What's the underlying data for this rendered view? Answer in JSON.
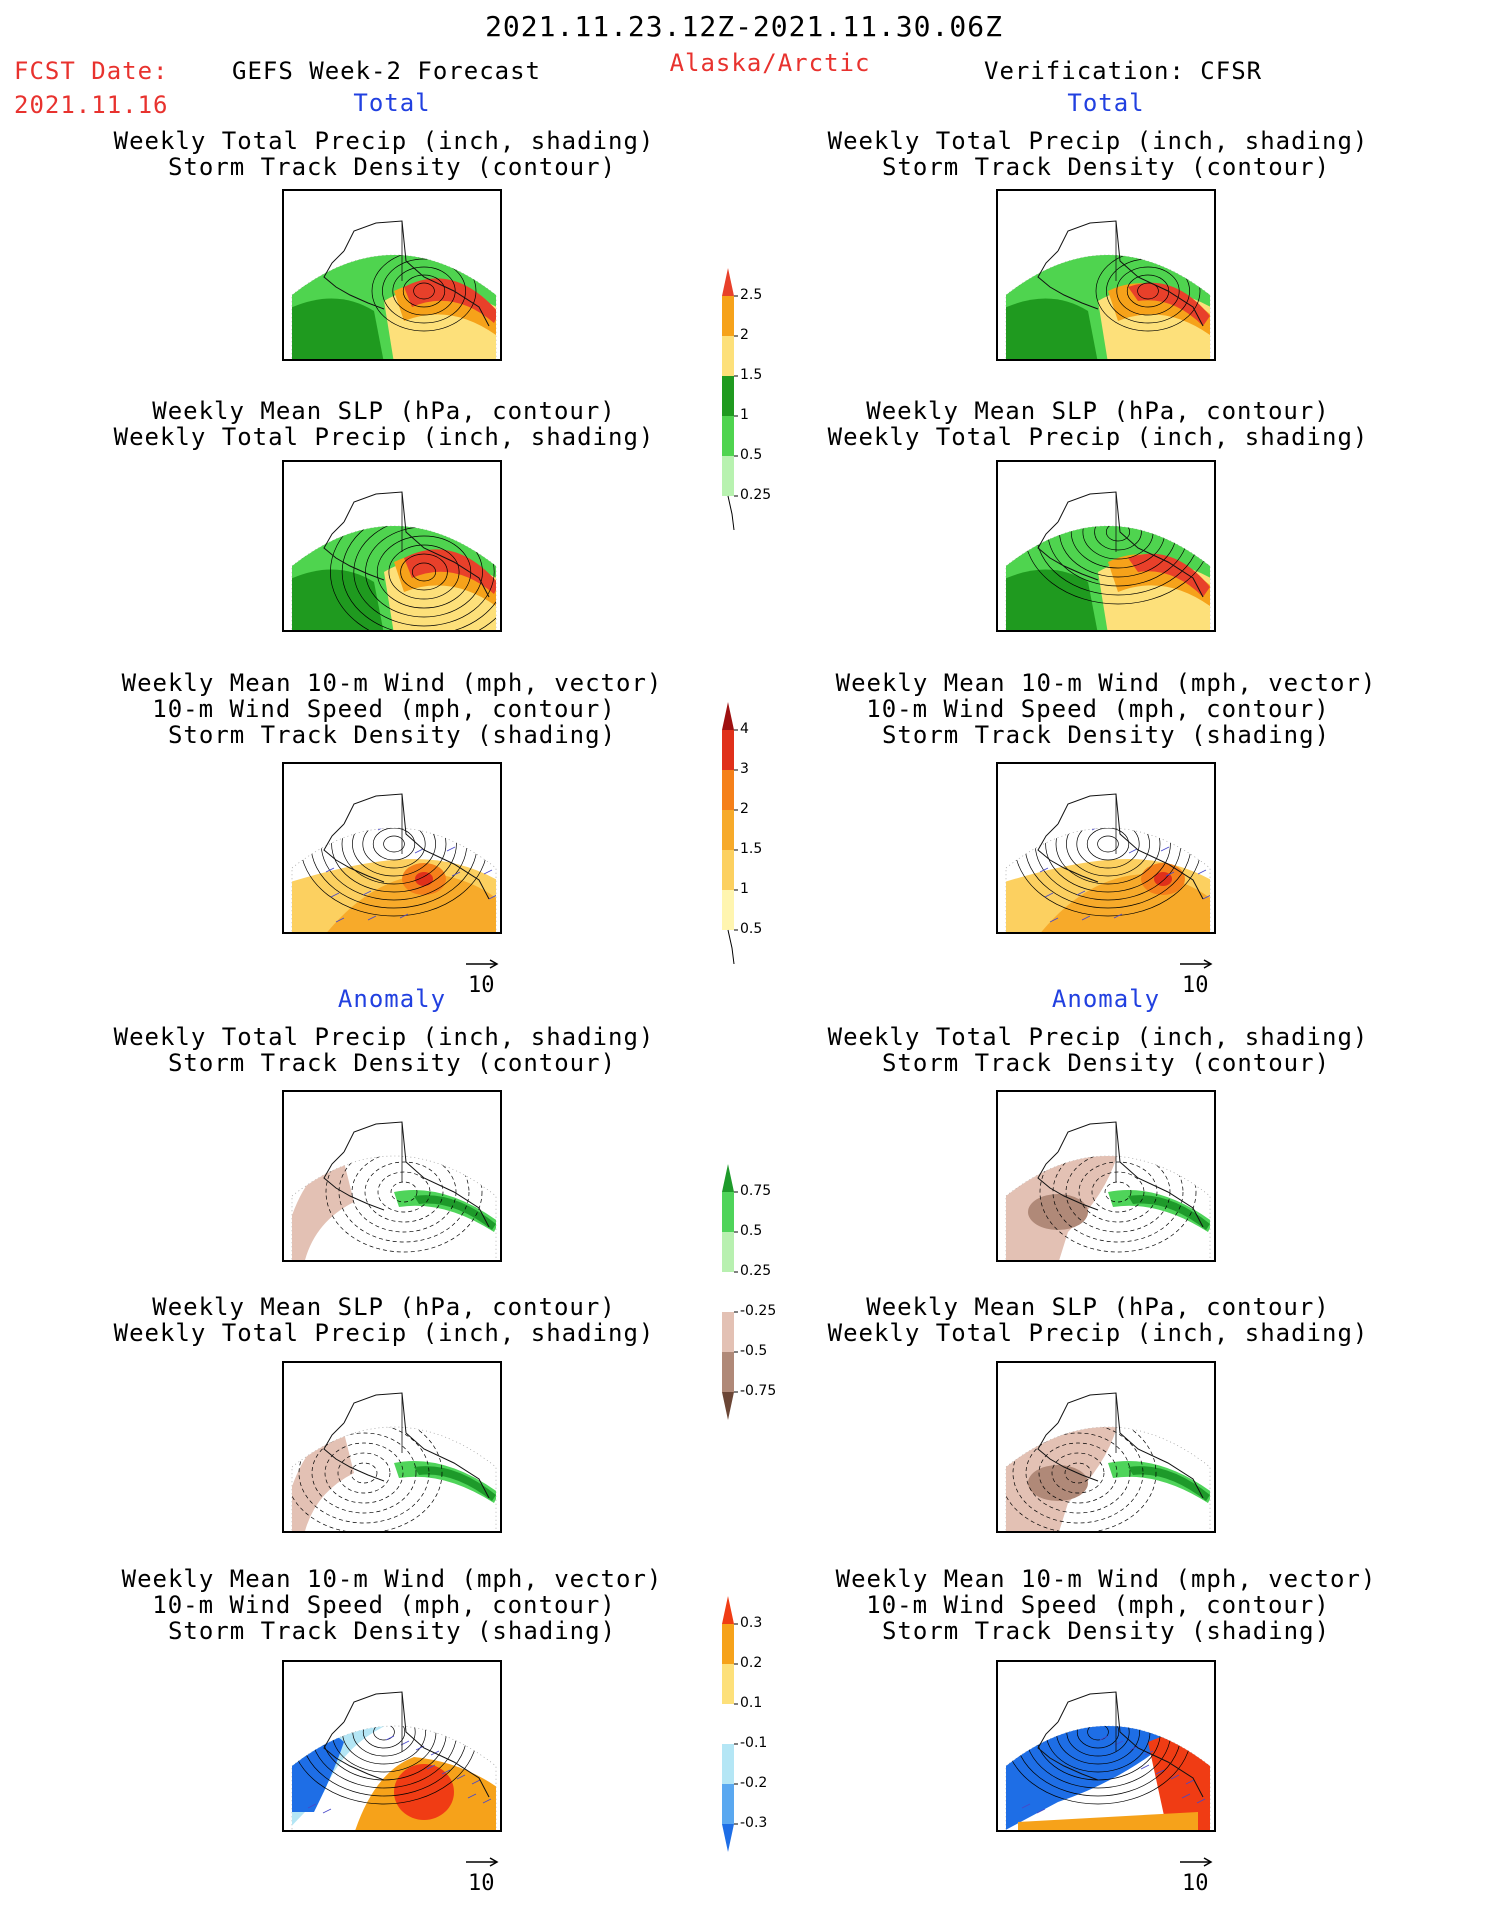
{
  "header": {
    "period": "2021.11.23.12Z-2021.11.30.06Z",
    "fcst_label": "FCST Date:",
    "fcst_date": "2021.11.16",
    "left_title": "GEFS Week-2 Forecast",
    "region": "Alaska/Arctic",
    "right_title": "Verification: CFSR"
  },
  "sections": {
    "total": "Total",
    "anomaly": "Anomaly"
  },
  "panel_titles": {
    "precip_storm": [
      "Weekly Total Precip (inch, shading)",
      "Storm Track Density (contour)"
    ],
    "slp_precip": [
      "Weekly Mean SLP (hPa, contour)",
      "Weekly Total Precip (inch, shading)"
    ],
    "wind_storm": [
      "Weekly Mean 10-m Wind (mph, vector)",
      "10-m Wind Speed (mph, contour)",
      "Storm Track Density (shading)"
    ]
  },
  "vector_scale": "10",
  "colorbars": {
    "precip_total": {
      "labels": [
        "2.5",
        "2",
        "1.5",
        "1",
        "0.5",
        "0.25"
      ],
      "colors": [
        "#e8402a",
        "#f6a21a",
        "#fde07a",
        "#1f9a1f",
        "#4fd44f",
        "#b8f2b0"
      ]
    },
    "storm_total": {
      "labels": [
        "4",
        "3",
        "2",
        "1.5",
        "1",
        "0.5"
      ],
      "colors": [
        "#9e1010",
        "#e0301a",
        "#f5801a",
        "#f7aa2a",
        "#fcd060",
        "#fff5b0"
      ]
    },
    "precip_anom": {
      "labels": [
        "0.75",
        "0.5",
        "0.25",
        "-0.25",
        "-0.5",
        "-0.75"
      ],
      "colors": [
        "#1e9a2a",
        "#4fd45a",
        "#b8f0b0",
        "#ffffff",
        "#e3c1b4",
        "#b08978",
        "#6b4636"
      ]
    },
    "storm_anom": {
      "labels": [
        "0.3",
        "0.2",
        "0.1",
        "-0.1",
        "-0.2",
        "-0.3"
      ],
      "colors": [
        "#f03c14",
        "#f6a21a",
        "#fde07a",
        "#ffffff",
        "#b4e6f5",
        "#5aa8f0",
        "#1e6ee6"
      ]
    }
  }
}
